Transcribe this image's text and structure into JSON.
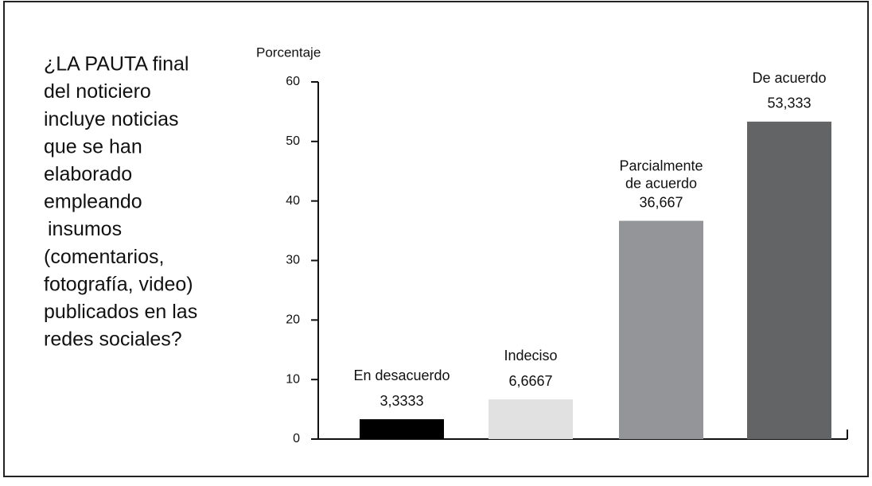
{
  "chart_data": {
    "type": "bar",
    "annotation": [
      "¿LA PAUTA final",
      "del noticiero",
      "incluye noticias",
      "que se han",
      "elaborado",
      "empleando",
      "insumos",
      "(comentarios,",
      "fotografía, video)",
      "publicados en las",
      "redes sociales?"
    ],
    "y_label": "Porcentaje",
    "categories": [
      "En desacuerdo",
      "Indeciso",
      "Parcialmente de acuerdo",
      "De acuerdo"
    ],
    "values": [
      3.3333,
      6.6667,
      36.667,
      53.333
    ],
    "value_labels": [
      "3,3333",
      "6,6667",
      "36,667",
      "53,333"
    ],
    "colors": [
      "#000000",
      "#e1e1e2",
      "#939598",
      "#636466"
    ],
    "ylim": [
      0,
      60
    ],
    "yticks": [
      0,
      10,
      20,
      30,
      40,
      50,
      60
    ]
  }
}
